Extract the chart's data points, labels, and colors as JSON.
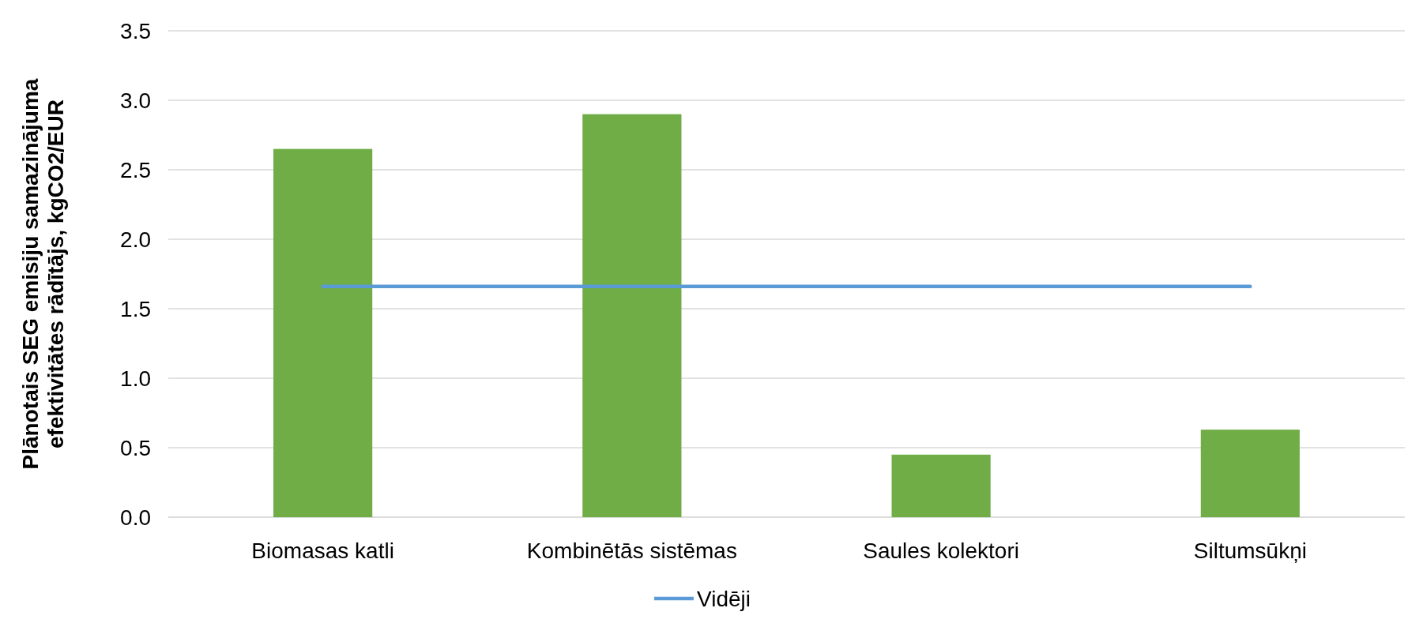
{
  "chart_data": {
    "type": "bar",
    "ylabel": "Plānotais SEG emisiju samazinājuma efektivitātes rādītājs, kgCO2/EUR",
    "categories": [
      "Biomasas katli",
      "Kombinētās sistēmas",
      "Saules kolektori",
      "Siltumsūkņi"
    ],
    "series": [
      {
        "color": "#70ad47",
        "values": [
          2.65,
          2.9,
          0.45,
          0.63
        ]
      },
      {
        "type": "line",
        "name": "Vidēji",
        "color": "#5b9bd5",
        "values": [
          1.66,
          1.66,
          1.66,
          1.66
        ]
      }
    ],
    "ylim": [
      0,
      3.5
    ],
    "yticks": [
      {
        "value": 0,
        "label": "0.0"
      },
      {
        "value": 0.5,
        "label": "0.5"
      },
      {
        "value": 1,
        "label": "1.0"
      },
      {
        "value": 1.5,
        "label": "1.5"
      },
      {
        "value": 2,
        "label": "2.0"
      },
      {
        "value": 2.5,
        "label": "2.5"
      },
      {
        "value": 3,
        "label": "3.0"
      },
      {
        "value": 3.5,
        "label": "3.5"
      }
    ],
    "grid": "y",
    "legend": "bottom"
  }
}
